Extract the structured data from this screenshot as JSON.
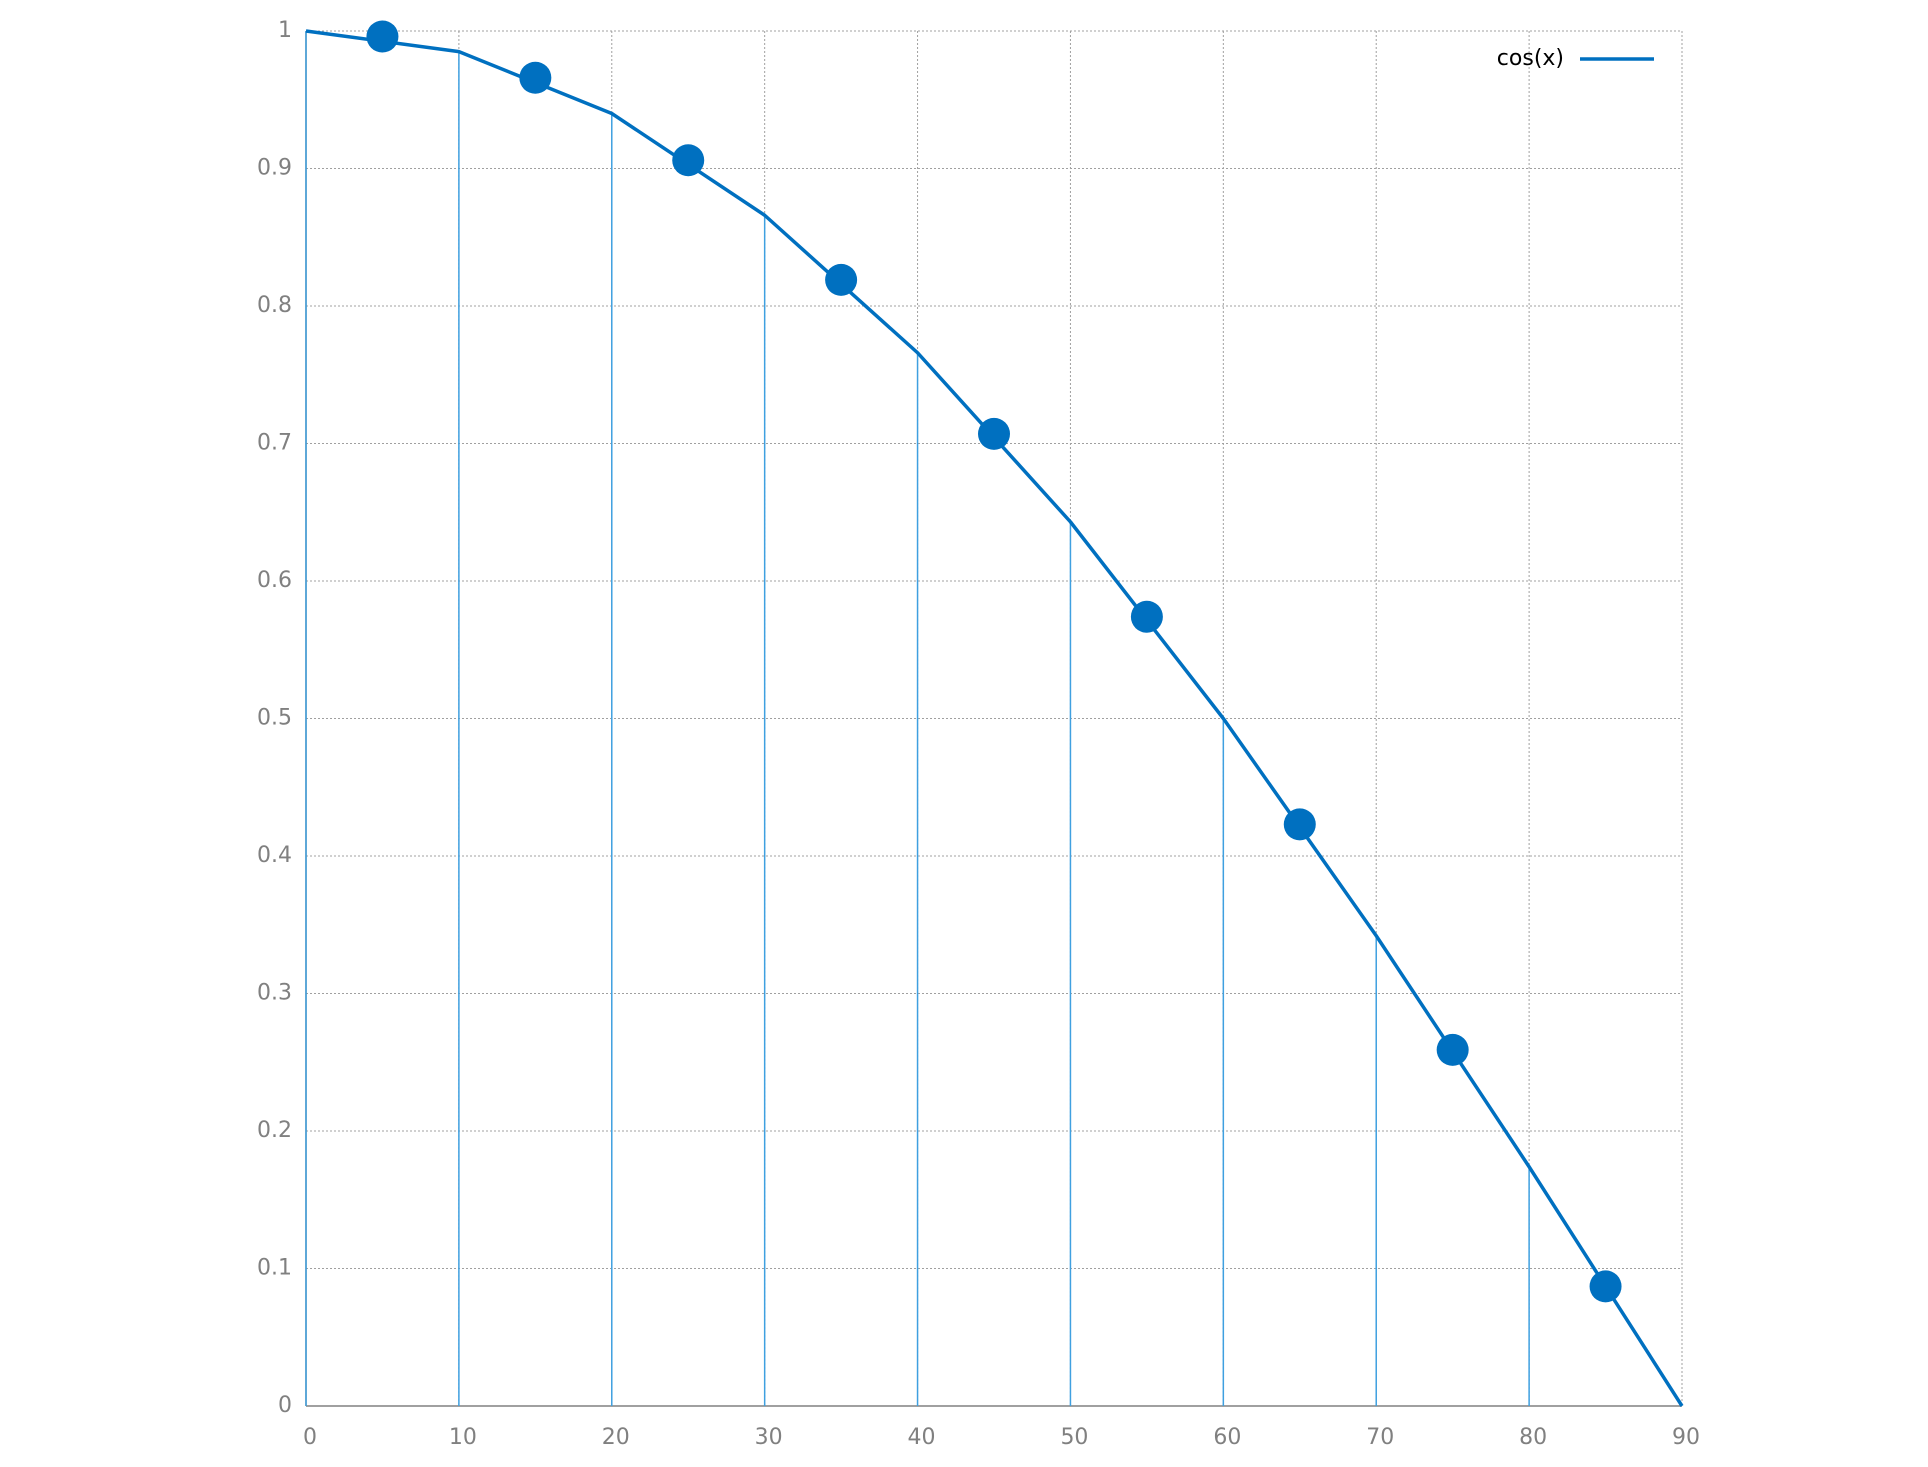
{
  "chart_data": {
    "type": "line",
    "xlim": [
      0,
      90
    ],
    "ylim": [
      0,
      1
    ],
    "xticks": [
      0,
      10,
      20,
      30,
      40,
      50,
      60,
      70,
      80,
      90
    ],
    "yticks": [
      0,
      0.1,
      0.2,
      0.3,
      0.4,
      0.5,
      0.6,
      0.7,
      0.8,
      0.9,
      1
    ],
    "grid": true,
    "legend": "top-right",
    "series": [
      {
        "name": "cos(x)",
        "color": "#0070c0",
        "style": "line",
        "impulses": true,
        "impulse_color": "#3fa0e0",
        "x": [
          0,
          10,
          20,
          30,
          40,
          50,
          60,
          70,
          80,
          90
        ],
        "values": [
          1,
          0.985,
          0.94,
          0.866,
          0.766,
          0.643,
          0.5,
          0.342,
          0.174,
          0
        ]
      },
      {
        "color": "#0070c0",
        "style": "points",
        "x": [
          5,
          15,
          25,
          35,
          45,
          55,
          65,
          75,
          85
        ],
        "values": [
          0.996,
          0.966,
          0.906,
          0.819,
          0.707,
          0.574,
          0.423,
          0.259,
          0.087
        ]
      }
    ]
  }
}
